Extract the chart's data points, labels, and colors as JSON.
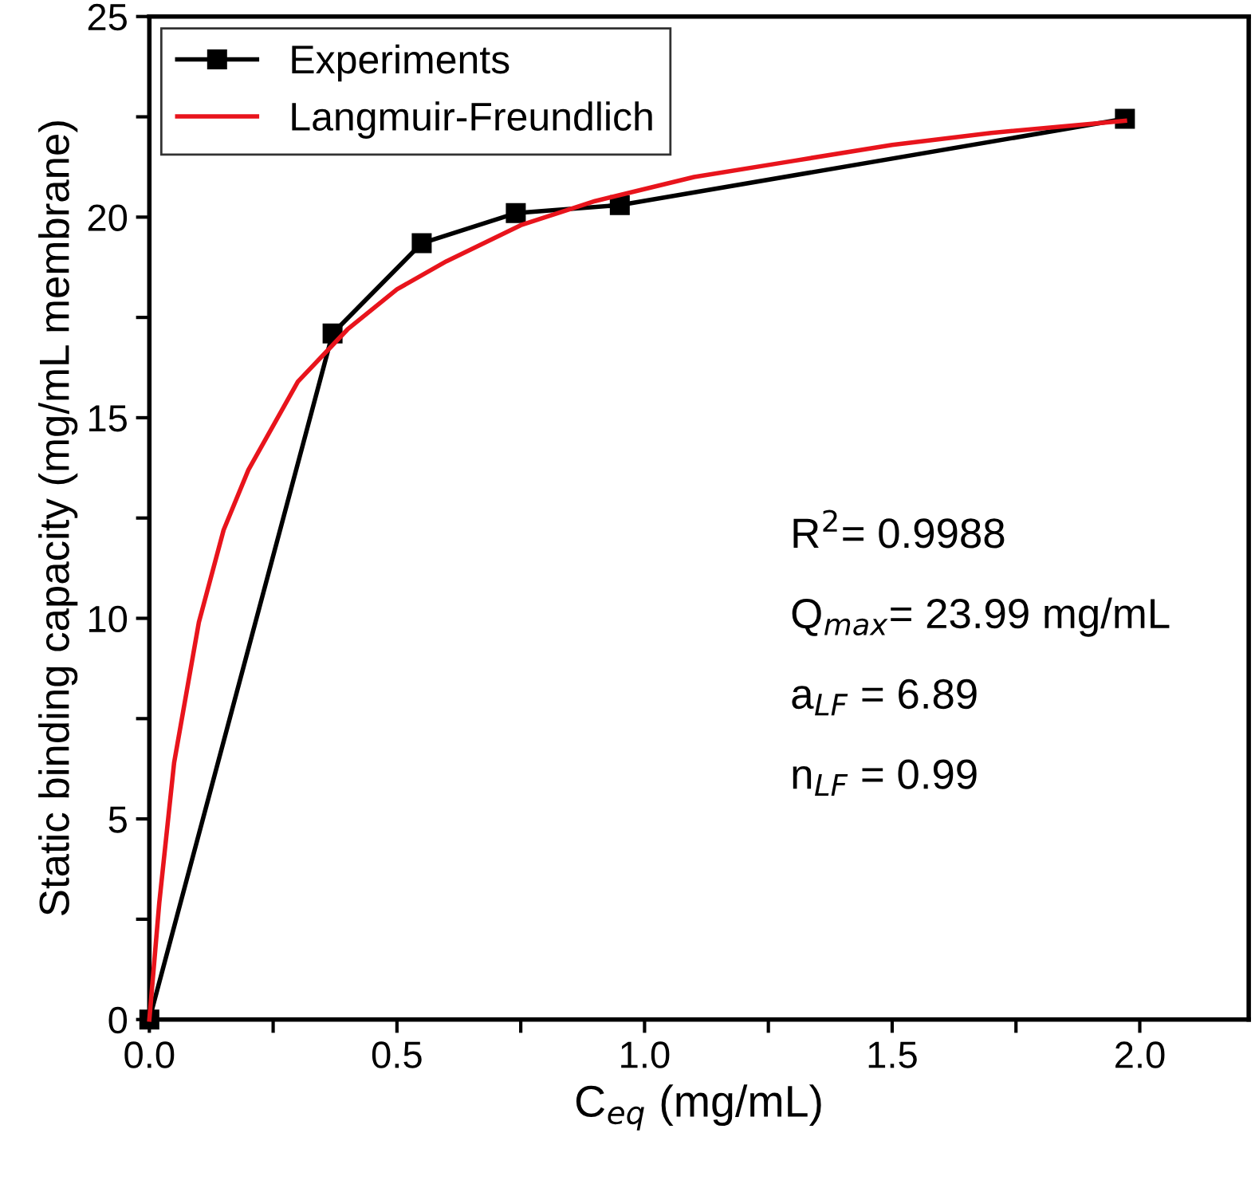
{
  "chart_data": {
    "type": "line",
    "xlabel": "C$_{eq}$ (mg/mL)",
    "ylabel": "Static binding capacity (mg/mL membrane)",
    "xlim": [
      0,
      2.22
    ],
    "ylim": [
      0,
      25
    ],
    "xticks": [
      {
        "value": 0,
        "label": "0.0"
      },
      {
        "value": 0.25,
        "label": null
      },
      {
        "value": 0.5,
        "label": "0.5"
      },
      {
        "value": 0.75,
        "label": null
      },
      {
        "value": 1,
        "label": "1.0"
      },
      {
        "value": 1.25,
        "label": null
      },
      {
        "value": 1.5,
        "label": "1.5"
      },
      {
        "value": 1.75,
        "label": null
      },
      {
        "value": 2,
        "label": "2.0"
      }
    ],
    "yticks": [
      0,
      {
        "value": 2.5,
        "label": null
      },
      5,
      {
        "value": 7.5,
        "label": null
      },
      10,
      {
        "value": 12.5,
        "label": null
      },
      15,
      {
        "value": 17.5,
        "label": null
      },
      20,
      {
        "value": 22.5,
        "label": null
      },
      25
    ],
    "series": [
      {
        "name": "Experiments",
        "color": "#000000",
        "marker": "square",
        "x": [
          0,
          0.37,
          0.55,
          0.74,
          0.95,
          1.97
        ],
        "values": [
          0,
          17.1,
          19.35,
          20.1,
          20.3,
          22.45
        ]
      },
      {
        "name": "Langmuir-Freundlich",
        "color": "#e8141c",
        "marker": "none",
        "x": [
          0,
          0.02,
          0.05,
          0.1,
          0.15,
          0.2,
          0.3,
          0.4,
          0.5,
          0.6,
          0.75,
          0.9,
          1.1,
          1.3,
          1.5,
          1.7,
          1.97
        ],
        "values": [
          0,
          2.9,
          6.4,
          9.9,
          12.2,
          13.7,
          15.9,
          17.2,
          18.2,
          18.9,
          19.8,
          20.4,
          21.0,
          21.4,
          21.8,
          22.1,
          22.4
        ]
      }
    ],
    "annotations": [
      "R$^{2}$= 0.9988",
      "Q$_{max}$= 23.99 mg/mL",
      "a$_{LF}$ = 6.89",
      "n$_{LF}$ = 0.99"
    ],
    "legend": "top left",
    "grid": false
  }
}
